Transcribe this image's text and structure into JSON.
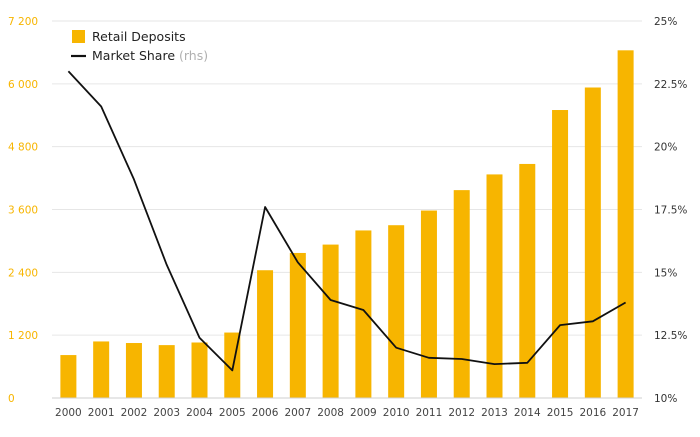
{
  "chart_data": {
    "type": "bar+line",
    "categories": [
      "2000",
      "2001",
      "2002",
      "2003",
      "2004",
      "2005",
      "2006",
      "2007",
      "2008",
      "2009",
      "2010",
      "2011",
      "2012",
      "2013",
      "2014",
      "2015",
      "2016",
      "2017"
    ],
    "series": [
      {
        "name": "Retail Deposits",
        "type": "bar",
        "axis": "left",
        "color": "#F7B500",
        "values": [
          820,
          1080,
          1050,
          1010,
          1060,
          1250,
          2440,
          2770,
          2930,
          3200,
          3300,
          3580,
          3970,
          4270,
          4470,
          5500,
          5930,
          6640
        ]
      },
      {
        "name": "Market Share",
        "name_suffix": "(rhs)",
        "type": "line",
        "axis": "right",
        "color": "#111111",
        "values": [
          23.0,
          21.6,
          18.7,
          15.3,
          12.4,
          11.1,
          17.6,
          15.4,
          13.9,
          13.5,
          12.0,
          11.6,
          11.55,
          11.35,
          11.4,
          12.9,
          13.05,
          13.8
        ]
      }
    ],
    "y_left": {
      "range": [
        0,
        7200
      ],
      "ticks": [
        0,
        1200,
        2400,
        3600,
        4800,
        6000,
        7200
      ],
      "tick_labels": [
        "0",
        "1 200",
        "2 400",
        "3 600",
        "4 800",
        "6 000",
        "7 200"
      ],
      "tick_color": "#F7B500"
    },
    "y_right": {
      "range": [
        10,
        25
      ],
      "ticks": [
        10,
        12.5,
        15,
        17.5,
        20,
        22.5,
        25
      ],
      "tick_labels": [
        "10%",
        "12.5%",
        "15%",
        "17.5%",
        "20%",
        "22.5%",
        "25%"
      ]
    },
    "grid": true,
    "legend": "top-left"
  }
}
